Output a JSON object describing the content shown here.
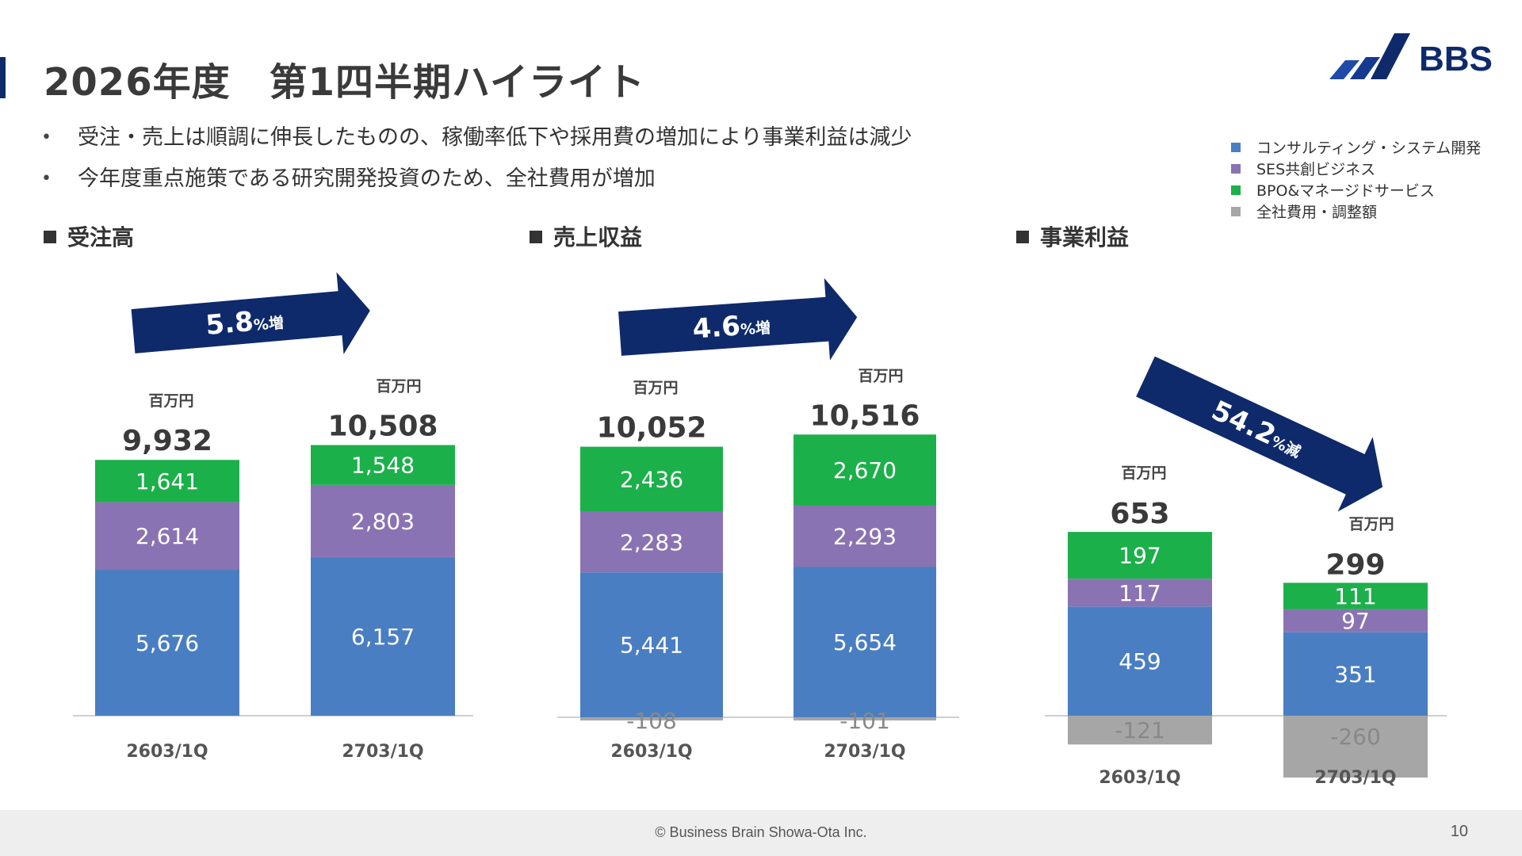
{
  "header": {
    "title": "2026年度　第1四半期ハイライト",
    "logo_text": "BBS"
  },
  "bullets": [
    "受注・売上は順調に伸長したものの、稼働率低下や採用費の増加により事業利益は減少",
    "今年度重点施策である研究開発投資のため、全社費用が増加"
  ],
  "bullet_glyph": "•",
  "legend": [
    {
      "label": "コンサルティング・システム開発",
      "color": "#4a7ec2"
    },
    {
      "label": "SES共創ビジネス",
      "color": "#8a73b3"
    },
    {
      "label": "BPO&マネージドサービス",
      "color": "#1cb04a"
    },
    {
      "label": "全社費用・調整額",
      "color": "#a6a6a6"
    }
  ],
  "sections": [
    {
      "title": "受注高"
    },
    {
      "title": "売上収益"
    },
    {
      "title": "事業利益"
    }
  ],
  "chart_data": [
    {
      "type": "bar",
      "stacked": true,
      "title": "受注高",
      "categories": [
        "2603/1Q",
        "2703/1Q"
      ],
      "unit": "百万円",
      "totals": [
        "9,932",
        "10,508"
      ],
      "series": [
        {
          "name": "コンサルティング・システム開発",
          "values": [
            5676,
            6157
          ],
          "labels": [
            "5,676",
            "6,157"
          ],
          "color": "#4a7ec2"
        },
        {
          "name": "SES共創ビジネス",
          "values": [
            2614,
            2803
          ],
          "labels": [
            "2,614",
            "2,803"
          ],
          "color": "#8a73b3"
        },
        {
          "name": "BPO&マネージドサービス",
          "values": [
            1641,
            1548
          ],
          "labels": [
            "1,641",
            "1,548"
          ],
          "color": "#1cb04a"
        }
      ],
      "change": {
        "value": "5.8",
        "suffix": "%増",
        "direction": "up"
      }
    },
    {
      "type": "bar",
      "stacked": true,
      "title": "売上収益",
      "categories": [
        "2603/1Q",
        "2703/1Q"
      ],
      "unit": "百万円",
      "totals": [
        "10,052",
        "10,516"
      ],
      "series": [
        {
          "name": "コンサルティング・システム開発",
          "values": [
            5441,
            5654
          ],
          "labels": [
            "5,441",
            "5,654"
          ],
          "color": "#4a7ec2"
        },
        {
          "name": "SES共創ビジネス",
          "values": [
            2283,
            2293
          ],
          "labels": [
            "2,283",
            "2,293"
          ],
          "color": "#8a73b3"
        },
        {
          "name": "BPO&マネージドサービス",
          "values": [
            2436,
            2670
          ],
          "labels": [
            "2,436",
            "2,670"
          ],
          "color": "#1cb04a"
        },
        {
          "name": "全社費用・調整額",
          "values": [
            -108,
            -101
          ],
          "labels": [
            "-108",
            "-101"
          ],
          "color": "#a6a6a6"
        }
      ],
      "change": {
        "value": "4.6",
        "suffix": "%増",
        "direction": "up"
      }
    },
    {
      "type": "bar",
      "stacked": true,
      "title": "事業利益",
      "categories": [
        "2603/1Q",
        "2703/1Q"
      ],
      "unit": "百万円",
      "totals": [
        "653",
        "299"
      ],
      "series": [
        {
          "name": "コンサルティング・システム開発",
          "values": [
            459,
            351
          ],
          "labels": [
            "459",
            "351"
          ],
          "color": "#4a7ec2"
        },
        {
          "name": "SES共創ビジネス",
          "values": [
            117,
            97
          ],
          "labels": [
            "117",
            "97"
          ],
          "color": "#8a73b3"
        },
        {
          "name": "BPO&マネージドサービス",
          "values": [
            197,
            111
          ],
          "labels": [
            "197",
            "111"
          ],
          "color": "#1cb04a"
        },
        {
          "name": "全社費用・調整額",
          "values": [
            -121,
            -260
          ],
          "labels": [
            "-121",
            "-260"
          ],
          "color": "#a6a6a6"
        }
      ],
      "change": {
        "value": "54.2",
        "suffix": "%減",
        "direction": "down"
      }
    }
  ],
  "colors": {
    "arrow": "#0e2a6b",
    "accent": "#0e2a6b",
    "axis": "#bfbfbf"
  },
  "footer": {
    "copyright": "© Business Brain Showa-Ota Inc.",
    "page_number": "10"
  }
}
